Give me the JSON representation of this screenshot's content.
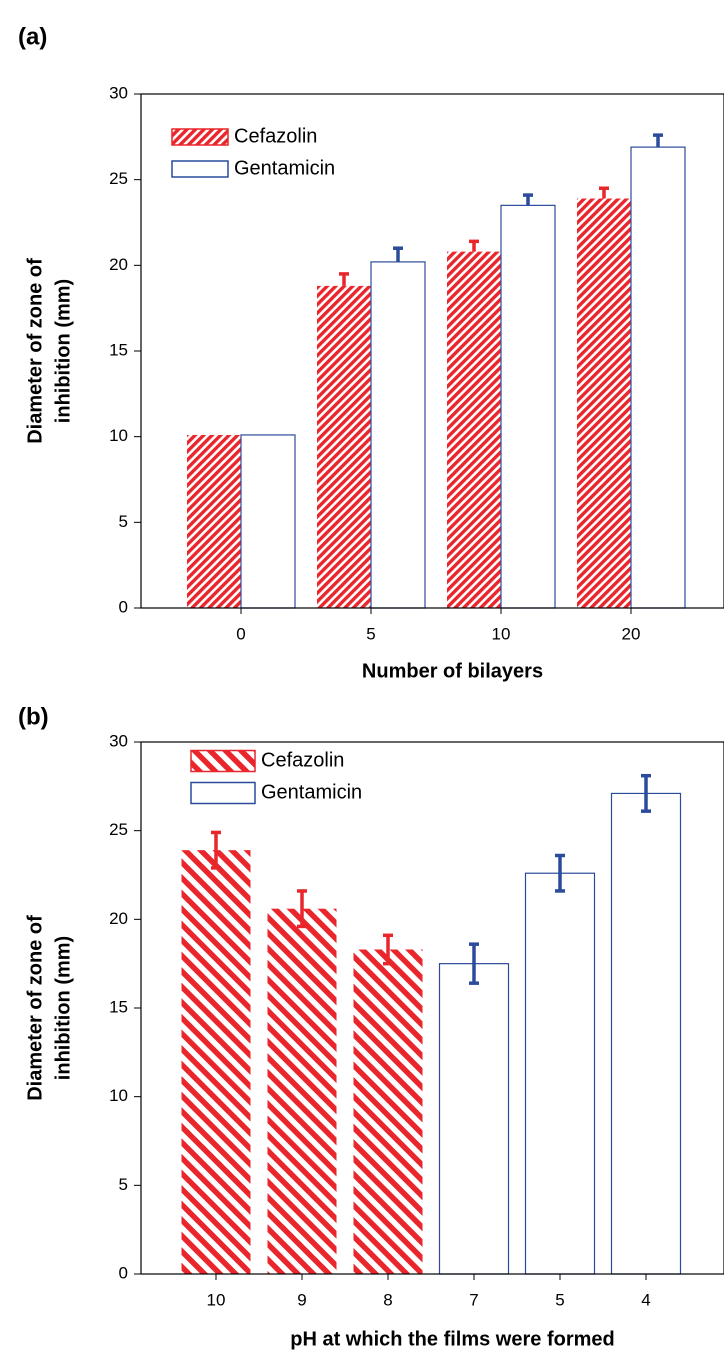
{
  "chart_data": [
    {
      "type": "bar",
      "panel_label": "(a)",
      "xlabel": "Number of bilayers",
      "ylabel": [
        "Diameter of zone of",
        "inhibition (mm)"
      ],
      "categories": [
        "0",
        "5",
        "10",
        "20"
      ],
      "series": [
        {
          "name": "Cefazolin",
          "color": "#e8262c",
          "hatch": "dense",
          "values": [
            10.1,
            18.8,
            20.8,
            23.9
          ],
          "errors": [
            0,
            0.7,
            0.6,
            0.6
          ]
        },
        {
          "name": "Gentamicin",
          "color": "#2b4b9b",
          "hatch": "none",
          "values": [
            10.1,
            20.2,
            23.5,
            26.9
          ],
          "errors": [
            0,
            0.8,
            0.6,
            0.7
          ]
        }
      ],
      "error_bars": "upper",
      "ylim": [
        0,
        30
      ],
      "yticks": [
        0,
        5,
        10,
        15,
        20,
        25,
        30
      ]
    },
    {
      "type": "bar",
      "panel_label": "(b)",
      "xlabel": "pH at which the films were formed",
      "ylabel": [
        "Diameter of zone of",
        "inhibition (mm)"
      ],
      "categories": [
        "10",
        "9",
        "8",
        "7",
        "5",
        "4"
      ],
      "series": [
        {
          "name": "Cefazolin",
          "color": "#e8262c",
          "hatch": "wide",
          "values": [
            23.9,
            20.6,
            18.3,
            null,
            null,
            null
          ],
          "errors": [
            1.0,
            1.0,
            0.8,
            null,
            null,
            null
          ]
        },
        {
          "name": "Gentamicin",
          "color": "#2b4b9b",
          "hatch": "none",
          "values": [
            null,
            null,
            null,
            17.5,
            22.6,
            27.1
          ],
          "errors": [
            null,
            null,
            null,
            1.1,
            1.0,
            1.0
          ]
        }
      ],
      "error_bars": "both",
      "ylim": [
        0,
        30
      ],
      "yticks": [
        0,
        5,
        10,
        15,
        20,
        25,
        30
      ]
    }
  ]
}
